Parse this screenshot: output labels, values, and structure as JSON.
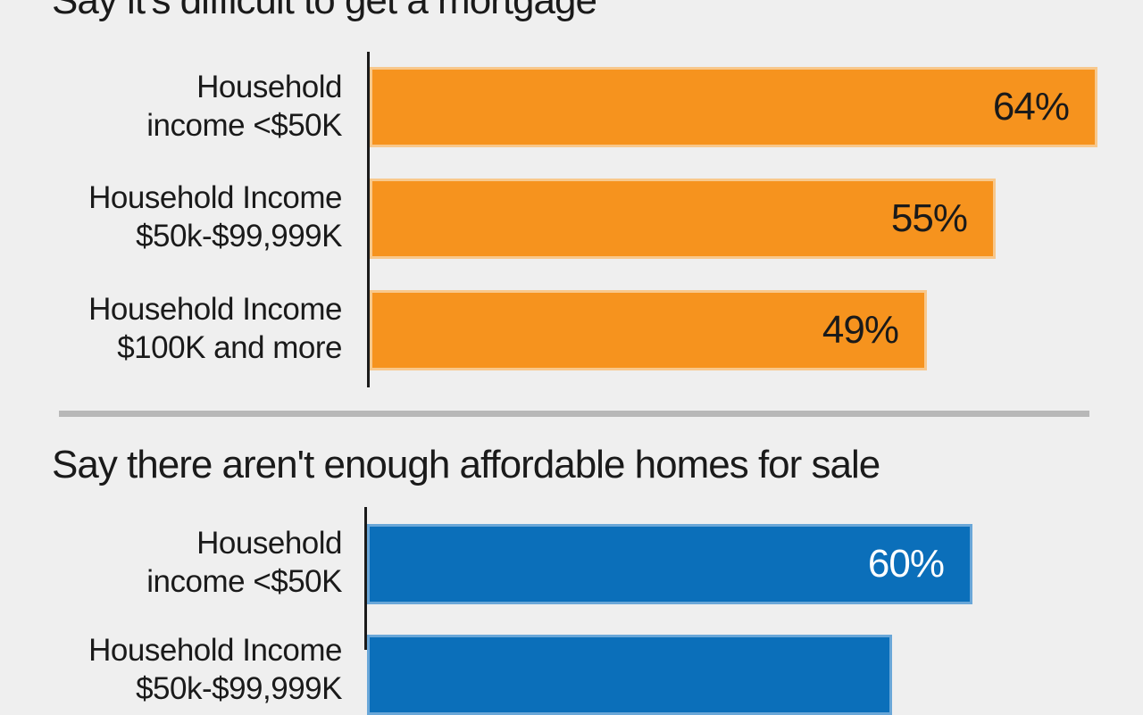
{
  "charts": [
    {
      "title": "Say it's difficult to get a mortgage",
      "color": "#f6931e",
      "chart_data": {
        "type": "bar",
        "categories": [
          "Household\nincome <$50K",
          "Household Income\n$50k-$99,999K",
          "Household Income\n$100K and more"
        ],
        "values": [
          64,
          55,
          49
        ],
        "value_labels": [
          "64%",
          "55%",
          "49%"
        ]
      }
    },
    {
      "title": "Say there aren't enough affordable homes for sale",
      "color": "#0b6fba",
      "chart_data": {
        "type": "bar",
        "categories": [
          "Household\nincome <$50K",
          "Household Income\n$50k-$99,999K"
        ],
        "values": [
          60,
          52
        ],
        "value_labels": [
          "60%",
          ""
        ]
      }
    }
  ],
  "chart_data": [
    {
      "type": "bar",
      "title": "Say it's difficult to get a mortgage",
      "categories": [
        "Household\nincome <$50K",
        "Household Income\n$50k-$99,999K",
        "Household Income\n$100K and more"
      ],
      "values": [
        64,
        55,
        49
      ]
    },
    {
      "type": "bar",
      "title": "Say there aren't enough affordable homes for sale",
      "categories": [
        "Household\nincome <$50K",
        "Household Income\n$50k-$99,999K"
      ],
      "values": [
        60,
        52
      ]
    }
  ]
}
